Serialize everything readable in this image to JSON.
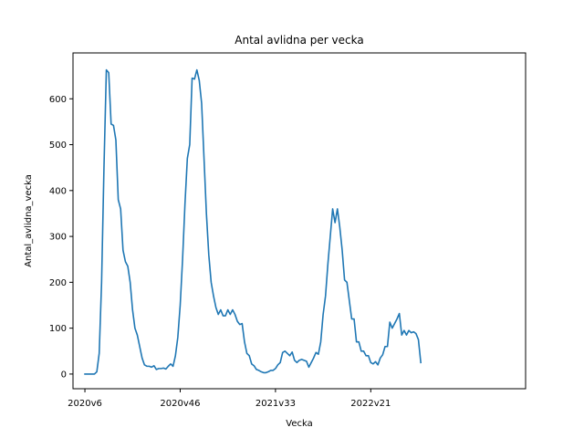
{
  "chart_data": {
    "type": "line",
    "title": "Antal avlidna per vecka",
    "xlabel": "Vecka",
    "ylabel": "Antal_avlidna_vecka",
    "ylim": [
      -32,
      700
    ],
    "yticks": [
      0,
      100,
      200,
      300,
      400,
      500,
      600
    ],
    "xlim": [
      -5,
      185
    ],
    "xticks": [
      {
        "label": "2020v6",
        "index": 0
      },
      {
        "label": "2020v46",
        "index": 40
      },
      {
        "label": "2021v33",
        "index": 80
      },
      {
        "label": "2022v21",
        "index": 120
      }
    ],
    "grid": false,
    "color": "#1f77b4",
    "series": [
      {
        "values": [
          0,
          0,
          0,
          0,
          0,
          5,
          45,
          200,
          450,
          663,
          657,
          545,
          542,
          510,
          380,
          360,
          270,
          245,
          235,
          200,
          140,
          100,
          85,
          60,
          35,
          20,
          17,
          17,
          15,
          18,
          10,
          12,
          12,
          13,
          11,
          17,
          22,
          17,
          40,
          80,
          150,
          250,
          370,
          470,
          500,
          645,
          643,
          663,
          640,
          590,
          470,
          350,
          260,
          200,
          170,
          145,
          130,
          140,
          127,
          127,
          140,
          130,
          140,
          130,
          115,
          108,
          110,
          70,
          45,
          40,
          22,
          18,
          10,
          8,
          5,
          3,
          3,
          5,
          8,
          8,
          12,
          20,
          25,
          47,
          50,
          45,
          40,
          48,
          30,
          25,
          30,
          32,
          30,
          28,
          15,
          25,
          35,
          47,
          43,
          70,
          130,
          170,
          240,
          300,
          360,
          330,
          360,
          320,
          270,
          205,
          200,
          160,
          120,
          120,
          70,
          70,
          50,
          50,
          40,
          40,
          25,
          22,
          27,
          20,
          35,
          42,
          60,
          60,
          113,
          100,
          110,
          120,
          132,
          85,
          95,
          85,
          95,
          90,
          92,
          88,
          75,
          25
        ]
      }
    ]
  }
}
